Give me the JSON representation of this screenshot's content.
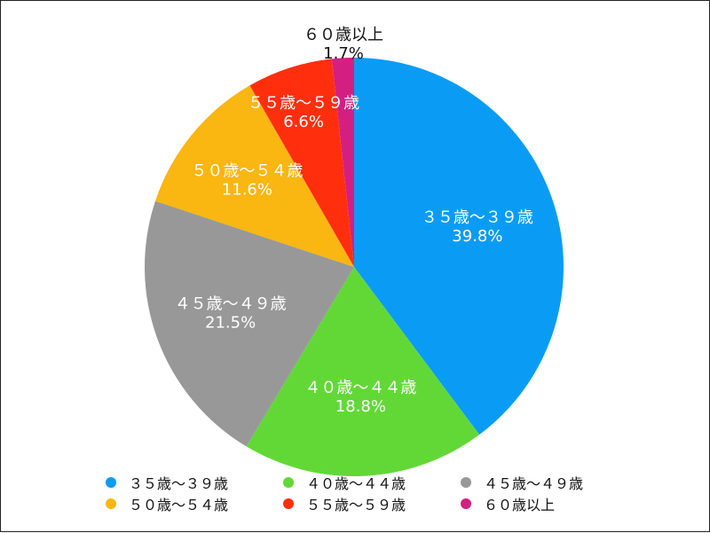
{
  "chart_data": {
    "type": "pie",
    "slices": [
      {
        "label": "３５歳〜３９歳",
        "value": 39.8,
        "value_label": "39.8%",
        "color": "#0a9cf5"
      },
      {
        "label": "４０歳〜４４歳",
        "value": 18.8,
        "value_label": "18.8%",
        "color": "#62d837"
      },
      {
        "label": "４５歳〜４９歳",
        "value": 21.5,
        "value_label": "21.5%",
        "color": "#989898"
      },
      {
        "label": "５０歳〜５４歳",
        "value": 11.6,
        "value_label": "11.6%",
        "color": "#fab611"
      },
      {
        "label": "５５歳〜５９歳",
        "value": 6.6,
        "value_label": "6.6%",
        "color": "#ff2f0e"
      },
      {
        "label": "６０歳以上",
        "value": 1.7,
        "value_label": "1.7%",
        "color": "#d41f82"
      }
    ],
    "start_angle": "12 o'clock",
    "direction": "clockwise",
    "legend_position": "bottom"
  }
}
